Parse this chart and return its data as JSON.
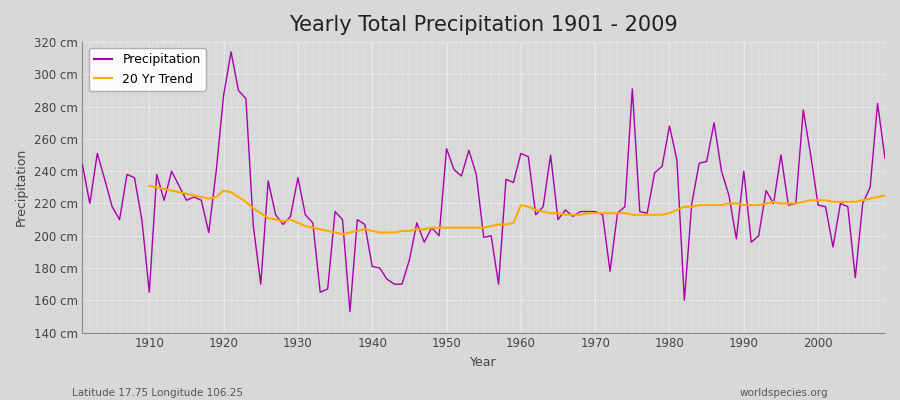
{
  "title": "Yearly Total Precipitation 1901 - 2009",
  "xlabel": "Year",
  "ylabel": "Precipitation",
  "subtitle_left": "Latitude 17.75 Longitude 106.25",
  "subtitle_right": "worldspecies.org",
  "years": [
    1901,
    1902,
    1903,
    1904,
    1905,
    1906,
    1907,
    1908,
    1909,
    1910,
    1911,
    1912,
    1913,
    1914,
    1915,
    1916,
    1917,
    1918,
    1919,
    1920,
    1921,
    1922,
    1923,
    1924,
    1925,
    1926,
    1927,
    1928,
    1929,
    1930,
    1931,
    1932,
    1933,
    1934,
    1935,
    1936,
    1937,
    1938,
    1939,
    1940,
    1941,
    1942,
    1943,
    1944,
    1945,
    1946,
    1947,
    1948,
    1949,
    1950,
    1951,
    1952,
    1953,
    1954,
    1955,
    1956,
    1957,
    1958,
    1959,
    1960,
    1961,
    1962,
    1963,
    1964,
    1965,
    1966,
    1967,
    1968,
    1969,
    1970,
    1971,
    1972,
    1973,
    1974,
    1975,
    1976,
    1977,
    1978,
    1979,
    1980,
    1981,
    1982,
    1983,
    1984,
    1985,
    1986,
    1987,
    1988,
    1989,
    1990,
    1991,
    1992,
    1993,
    1994,
    1995,
    1996,
    1997,
    1998,
    1999,
    2000,
    2001,
    2002,
    2003,
    2004,
    2005,
    2006,
    2007,
    2008,
    2009
  ],
  "precipitation": [
    244,
    220,
    251,
    235,
    218,
    210,
    238,
    236,
    210,
    165,
    238,
    222,
    240,
    231,
    222,
    224,
    222,
    202,
    240,
    287,
    314,
    290,
    285,
    206,
    170,
    234,
    213,
    207,
    212,
    236,
    213,
    208,
    165,
    167,
    215,
    210,
    153,
    210,
    207,
    181,
    180,
    173,
    170,
    170,
    185,
    208,
    196,
    205,
    200,
    254,
    241,
    237,
    253,
    238,
    199,
    200,
    170,
    235,
    233,
    251,
    249,
    213,
    218,
    250,
    210,
    216,
    212,
    215,
    215,
    215,
    213,
    178,
    214,
    218,
    291,
    215,
    214,
    239,
    243,
    268,
    247,
    160,
    220,
    245,
    246,
    270,
    240,
    225,
    198,
    240,
    196,
    200,
    228,
    220,
    250,
    219,
    220,
    278,
    250,
    219,
    218,
    193,
    220,
    218,
    174,
    220,
    230,
    282,
    248
  ],
  "trend_years": [
    1910,
    1911,
    1912,
    1913,
    1914,
    1915,
    1916,
    1917,
    1918,
    1919,
    1920,
    1921,
    1922,
    1923,
    1924,
    1925,
    1926,
    1927,
    1928,
    1929,
    1930,
    1931,
    1932,
    1933,
    1934,
    1935,
    1936,
    1937,
    1938,
    1939,
    1940,
    1941,
    1942,
    1943,
    1944,
    1945,
    1946,
    1947,
    1948,
    1949,
    1950,
    1951,
    1952,
    1953,
    1954,
    1955,
    1956,
    1957,
    1958,
    1959,
    1960,
    1961,
    1962,
    1963,
    1964,
    1965,
    1966,
    1967,
    1968,
    1969,
    1970,
    1971,
    1972,
    1973,
    1974,
    1975,
    1976,
    1977,
    1978,
    1979,
    1980,
    1981,
    1982,
    1983,
    1984,
    1985,
    1986,
    1987,
    1988,
    1989,
    1990,
    1991,
    1992,
    1993,
    1994,
    1995,
    1996,
    1997,
    1998,
    1999,
    2000,
    2001,
    2002,
    2003,
    2004,
    2005,
    2006,
    2007,
    2008,
    2009
  ],
  "trend": [
    231,
    230,
    229,
    228,
    227,
    226,
    225,
    224,
    223,
    224,
    228,
    227,
    224,
    221,
    217,
    214,
    211,
    210,
    209,
    210,
    208,
    206,
    205,
    204,
    203,
    202,
    201,
    202,
    203,
    204,
    203,
    202,
    202,
    202,
    203,
    203,
    204,
    204,
    205,
    205,
    205,
    205,
    205,
    205,
    205,
    205,
    206,
    207,
    207,
    208,
    219,
    218,
    216,
    215,
    214,
    214,
    213,
    213,
    213,
    214,
    214,
    214,
    214,
    214,
    214,
    213,
    213,
    213,
    213,
    213,
    214,
    216,
    218,
    218,
    219,
    219,
    219,
    219,
    220,
    220,
    219,
    219,
    219,
    220,
    221,
    220,
    220,
    220,
    221,
    222,
    222,
    222,
    221,
    221,
    221,
    221,
    222,
    223,
    224,
    225
  ],
  "precip_color": "#aa00aa",
  "trend_color": "#ffaa00",
  "bg_color": "#d8d8d8",
  "plot_bg_color": "#d8d8d8",
  "grid_color": "#bbbbbb",
  "ylim": [
    140,
    320
  ],
  "yticks": [
    140,
    160,
    180,
    200,
    220,
    240,
    260,
    280,
    300,
    320
  ],
  "ytick_labels": [
    "140 cm",
    "160 cm",
    "180 cm",
    "200 cm",
    "220 cm",
    "240 cm",
    "260 cm",
    "280 cm",
    "300 cm",
    "320 cm"
  ],
  "xticks": [
    1910,
    1920,
    1930,
    1940,
    1950,
    1960,
    1970,
    1980,
    1990,
    2000
  ],
  "title_fontsize": 15,
  "label_fontsize": 9,
  "tick_fontsize": 8.5
}
